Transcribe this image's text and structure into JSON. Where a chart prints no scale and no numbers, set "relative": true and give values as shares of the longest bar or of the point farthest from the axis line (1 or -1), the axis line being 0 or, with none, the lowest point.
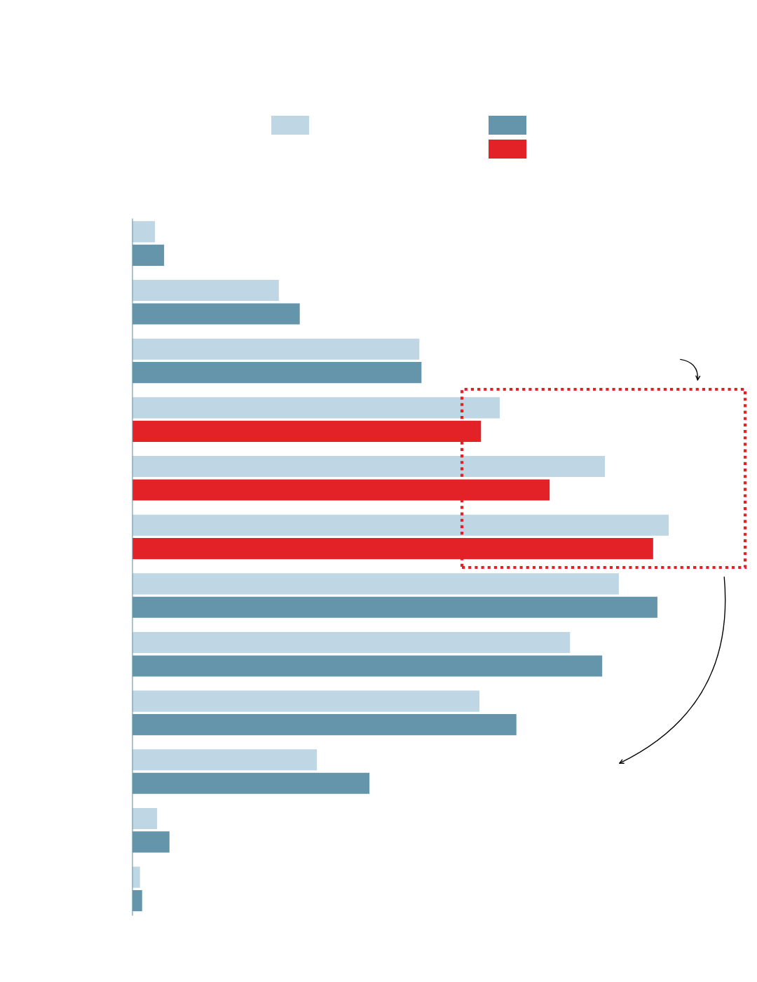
{
  "chart_data": {
    "type": "bar",
    "orientation": "horizontal",
    "relative": true,
    "grid": false,
    "legend": false,
    "categories": [
      null,
      null,
      null,
      null,
      null,
      null,
      null,
      null,
      null,
      null,
      null,
      null
    ],
    "series": [
      {
        "color": "#bfd6e4",
        "values": [
          0.042,
          0.273,
          0.535,
          0.685,
          0.881,
          1.0,
          0.907,
          0.816,
          0.647,
          0.344,
          0.046,
          0.014
        ]
      },
      {
        "color": "#6595aa",
        "colors": [
          "#6595aa",
          "#6595aa",
          "#6595aa",
          "#e32227",
          "#e32227",
          "#e32227",
          "#6595aa",
          "#6595aa",
          "#6595aa",
          "#6595aa",
          "#6595aa",
          "#6595aa"
        ],
        "values": [
          0.059,
          0.312,
          0.539,
          0.65,
          0.778,
          0.971,
          0.979,
          0.876,
          0.716,
          0.442,
          0.069,
          0.018
        ]
      }
    ]
  }
}
